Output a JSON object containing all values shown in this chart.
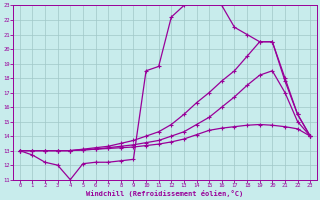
{
  "background_color": "#c8ecec",
  "grid_color": "#a0c8c8",
  "line_color": "#990099",
  "xlabel": "Windchill (Refroidissement éolien,°C)",
  "xlim": [
    -0.5,
    23.5
  ],
  "ylim": [
    11,
    23
  ],
  "yticks": [
    11,
    12,
    13,
    14,
    15,
    16,
    17,
    18,
    19,
    20,
    21,
    22,
    23
  ],
  "xticks": [
    0,
    1,
    2,
    3,
    4,
    5,
    6,
    7,
    8,
    9,
    10,
    11,
    12,
    13,
    14,
    15,
    16,
    17,
    18,
    19,
    20,
    21,
    22,
    23
  ],
  "s1_x": [
    0,
    1,
    2,
    3,
    4,
    5,
    6,
    7,
    8,
    9,
    10,
    11,
    12,
    13,
    14,
    15,
    16,
    17,
    18,
    19,
    20,
    21,
    22,
    23
  ],
  "s1_y": [
    13.0,
    12.7,
    12.2,
    12.0,
    11.0,
    12.1,
    12.2,
    12.2,
    12.3,
    12.4,
    18.5,
    18.8,
    22.2,
    23.0,
    23.2,
    23.2,
    23.0,
    21.5,
    21.0,
    20.5,
    20.5,
    17.8,
    15.5,
    14.0
  ],
  "s2_x": [
    0,
    1,
    2,
    3,
    4,
    5,
    6,
    7,
    8,
    9,
    10,
    11,
    12,
    13,
    14,
    15,
    16,
    17,
    18,
    19,
    20,
    21,
    22,
    23
  ],
  "s2_y": [
    13.0,
    13.0,
    13.0,
    13.0,
    13.0,
    13.05,
    13.1,
    13.15,
    13.2,
    13.25,
    13.35,
    13.45,
    13.6,
    13.8,
    14.1,
    14.4,
    14.55,
    14.65,
    14.75,
    14.8,
    14.75,
    14.65,
    14.5,
    14.0
  ],
  "s3_x": [
    0,
    1,
    2,
    3,
    4,
    5,
    6,
    7,
    8,
    9,
    10,
    11,
    12,
    13,
    14,
    15,
    16,
    17,
    18,
    19,
    20,
    21,
    22,
    23
  ],
  "s3_y": [
    13.0,
    13.0,
    13.0,
    13.0,
    13.0,
    13.1,
    13.2,
    13.3,
    13.5,
    13.7,
    14.0,
    14.3,
    14.8,
    15.5,
    16.3,
    17.0,
    17.8,
    18.5,
    19.5,
    20.5,
    20.5,
    18.0,
    15.5,
    14.0
  ],
  "s4_x": [
    0,
    1,
    2,
    3,
    4,
    5,
    6,
    7,
    8,
    9,
    10,
    11,
    12,
    13,
    14,
    15,
    16,
    17,
    18,
    19,
    20,
    21,
    22,
    23
  ],
  "s4_y": [
    13.0,
    13.0,
    13.0,
    13.0,
    13.0,
    13.05,
    13.1,
    13.2,
    13.3,
    13.4,
    13.55,
    13.7,
    14.0,
    14.3,
    14.8,
    15.3,
    16.0,
    16.7,
    17.5,
    18.2,
    18.5,
    17.0,
    15.0,
    14.0
  ]
}
